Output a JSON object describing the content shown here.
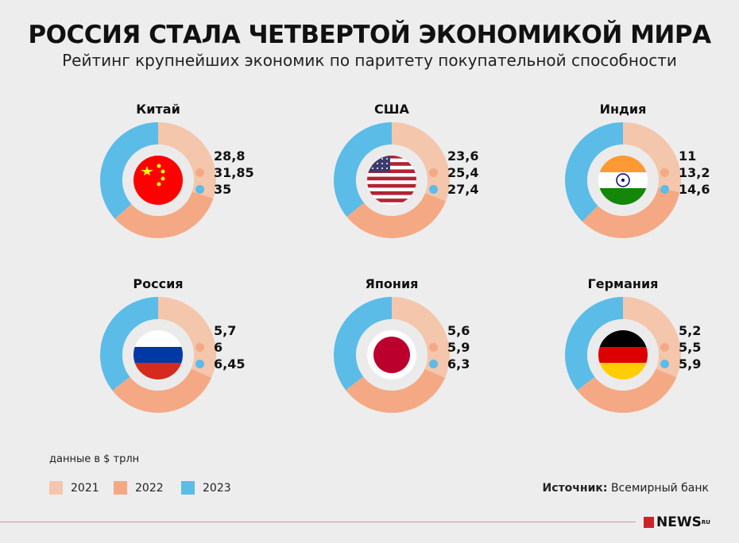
{
  "header": {
    "title": "РОССИЯ СТАЛА ЧЕТВЕРТОЙ ЭКОНОМИКОЙ МИРА",
    "subtitle": "Рейтинг крупнейших экономик по паритету покупательной способности"
  },
  "colors": {
    "2021": "#f4c6ac",
    "2022": "#f4a984",
    "2023": "#5bbce8",
    "inner": "#ebebeb"
  },
  "chart_data": {
    "type": "pie",
    "subtype": "donut",
    "series_names": [
      "2021",
      "2022",
      "2023"
    ],
    "units": "данные в $ трлн",
    "charts": [
      {
        "country": "Китай",
        "flag": "china-flag",
        "values": [
          28.8,
          31.85,
          35
        ],
        "labels": [
          "28,8",
          "31,85",
          "35"
        ]
      },
      {
        "country": "США",
        "flag": "usa-flag",
        "values": [
          23.6,
          25.4,
          27.4
        ],
        "labels": [
          "23,6",
          "25,4",
          "27,4"
        ]
      },
      {
        "country": "Индия",
        "flag": "india-flag",
        "values": [
          11,
          13.2,
          14.6
        ],
        "labels": [
          "11",
          "13,2",
          "14,6"
        ]
      },
      {
        "country": "Россия",
        "flag": "russia-flag",
        "values": [
          5.7,
          6,
          6.45
        ],
        "labels": [
          "5,7",
          "6",
          "6,45"
        ]
      },
      {
        "country": "Япония",
        "flag": "japan-flag",
        "values": [
          5.6,
          5.9,
          6.3
        ],
        "labels": [
          "5,6",
          "5,9",
          "6,3"
        ]
      },
      {
        "country": "Германия",
        "flag": "germany-flag",
        "values": [
          5.2,
          5.5,
          5.9
        ],
        "labels": [
          "5,2",
          "5,5",
          "5,9"
        ]
      }
    ]
  },
  "footer": {
    "note": "данные в $ трлн",
    "legend": [
      "2021",
      "2022",
      "2023"
    ],
    "source_label": "Источник:",
    "source_value": "Всемирный банк",
    "logo": "NEWS",
    "logo_sup": "RU"
  }
}
